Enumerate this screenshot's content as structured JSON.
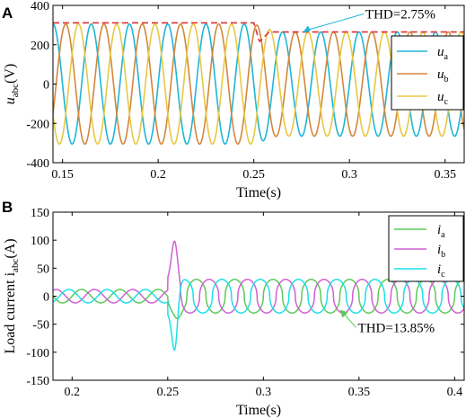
{
  "chart_data": [
    {
      "panel_label": "A",
      "type": "line",
      "xlabel": "Time(s)",
      "ylabel_main": "u",
      "ylabel_sub": "abc",
      "ylabel_unit": "(V)",
      "xlim": [
        0.145,
        0.36
      ],
      "ylim": [
        -400,
        400
      ],
      "xticks": [
        0.15,
        0.2,
        0.25,
        0.3,
        0.35
      ],
      "yticks": [
        -400,
        -200,
        0,
        200,
        400
      ],
      "xtick_labels": [
        "0.15",
        "0.2",
        "0.25",
        "0.3",
        "0.35"
      ],
      "ytick_labels": [
        "-400",
        "-200",
        "0",
        "200",
        "400"
      ],
      "frequency_hz": 50,
      "series": [
        {
          "name": "a",
          "color": "#1fb5d8",
          "phase_deg": 0
        },
        {
          "name": "b",
          "color": "#d4873a",
          "phase_deg": -120
        },
        {
          "name": "c",
          "color": "#e8c842",
          "phase_deg": 120
        }
      ],
      "amplitude_before": 305,
      "amplitude_after": 265,
      "disturbance_time": 0.25,
      "envelope": {
        "color": "#e03030",
        "before": 311,
        "dip": 215,
        "after": 265
      },
      "annotation": {
        "text": "THD=2.75%",
        "at": [
          0.275,
          265
        ]
      },
      "legend_placement": "right",
      "grid": false
    },
    {
      "panel_label": "B",
      "type": "line",
      "xlabel": "Time(s)",
      "ylabel_main": "Load current i",
      "ylabel_sub": "abc",
      "ylabel_unit": "(A)",
      "xlim": [
        0.19,
        0.405
      ],
      "ylim": [
        -150,
        150
      ],
      "xticks": [
        0.2,
        0.25,
        0.3,
        0.35,
        0.4
      ],
      "yticks": [
        -150,
        -100,
        -50,
        0,
        50,
        100,
        150
      ],
      "xtick_labels": [
        "0.2",
        "0.25",
        "0.3",
        "0.35",
        "0.4"
      ],
      "ytick_labels": [
        "-150",
        "-100",
        "-50",
        "0",
        "50",
        "100",
        "150"
      ],
      "frequency_hz": 50,
      "series": [
        {
          "name": "a",
          "color": "#5fc85a",
          "phase_deg": 0
        },
        {
          "name": "b",
          "color": "#d060d0",
          "phase_deg": -120
        },
        {
          "name": "c",
          "color": "#1ce0e8",
          "phase_deg": 120
        }
      ],
      "amplitude_before": 12,
      "amplitude_after": 30,
      "step_time": 0.25,
      "transient_peaks": {
        "b": 98,
        "c": -96
      },
      "annotation": {
        "text": "THD=13.85%",
        "at": [
          0.34,
          -24
        ]
      },
      "legend_placement": "top-right",
      "grid": false
    }
  ]
}
